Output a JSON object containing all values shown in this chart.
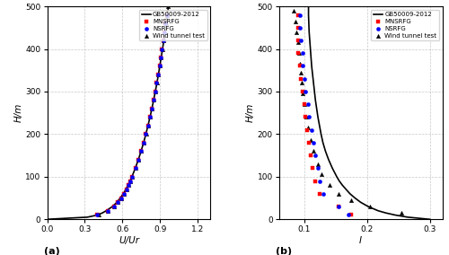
{
  "panel_a": {
    "xlabel": "U/Ur",
    "ylabel": "H/m",
    "xlim": [
      0.0,
      1.3
    ],
    "ylim": [
      0,
      500
    ],
    "xticks": [
      0.0,
      0.3,
      0.6,
      0.9,
      1.2
    ],
    "yticks": [
      0,
      100,
      200,
      300,
      400,
      500
    ],
    "gb_H": [
      0,
      5,
      10,
      15,
      20,
      30,
      40,
      50,
      60,
      70,
      80,
      90,
      100,
      120,
      140,
      160,
      180,
      200,
      220,
      240,
      260,
      280,
      300,
      320,
      340,
      360,
      380,
      400,
      420,
      440,
      460,
      480,
      500
    ],
    "gb_U": [
      0.0,
      0.32,
      0.4,
      0.44,
      0.47,
      0.52,
      0.555,
      0.582,
      0.606,
      0.626,
      0.644,
      0.66,
      0.675,
      0.702,
      0.726,
      0.748,
      0.768,
      0.786,
      0.803,
      0.819,
      0.834,
      0.848,
      0.861,
      0.874,
      0.886,
      0.897,
      0.908,
      0.919,
      0.929,
      0.938,
      0.948,
      0.957,
      0.966
    ],
    "mn_H": [
      10,
      20,
      30,
      40,
      50,
      60,
      70,
      80,
      90,
      100,
      120,
      140,
      160,
      180,
      200,
      220,
      240,
      260,
      280,
      300,
      320,
      340,
      360,
      380,
      400,
      420,
      440,
      460,
      480
    ],
    "mn_U": [
      0.4,
      0.48,
      0.53,
      0.562,
      0.588,
      0.611,
      0.63,
      0.648,
      0.664,
      0.679,
      0.706,
      0.729,
      0.75,
      0.769,
      0.786,
      0.803,
      0.818,
      0.833,
      0.847,
      0.86,
      0.872,
      0.883,
      0.894,
      0.905,
      0.915,
      0.924,
      0.934,
      0.943,
      0.951
    ],
    "ns_H": [
      10,
      20,
      30,
      40,
      50,
      60,
      70,
      80,
      90,
      100,
      120,
      140,
      160,
      180,
      200,
      220,
      240,
      260,
      280,
      300,
      320,
      340,
      360,
      380,
      400,
      420,
      440,
      460,
      480
    ],
    "ns_U": [
      0.4,
      0.48,
      0.53,
      0.562,
      0.588,
      0.611,
      0.63,
      0.648,
      0.664,
      0.679,
      0.706,
      0.729,
      0.75,
      0.769,
      0.786,
      0.803,
      0.818,
      0.833,
      0.847,
      0.86,
      0.872,
      0.883,
      0.894,
      0.905,
      0.915,
      0.924,
      0.934,
      0.943,
      0.951
    ],
    "wt_H": [
      10,
      20,
      30,
      40,
      50,
      60,
      70,
      80,
      90,
      100,
      120,
      140,
      160,
      180,
      200,
      220,
      240,
      260,
      280,
      300,
      320,
      340,
      360,
      380,
      400,
      420,
      440,
      460,
      480,
      500
    ],
    "wt_U": [
      0.41,
      0.48,
      0.53,
      0.558,
      0.588,
      0.612,
      0.63,
      0.648,
      0.663,
      0.678,
      0.704,
      0.728,
      0.749,
      0.769,
      0.787,
      0.803,
      0.819,
      0.833,
      0.847,
      0.86,
      0.873,
      0.884,
      0.895,
      0.906,
      0.916,
      0.925,
      0.934,
      0.944,
      0.953,
      0.962
    ],
    "label": "(a)"
  },
  "panel_b": {
    "xlabel": "I",
    "ylabel": "H/m",
    "xlim": [
      0.06,
      0.32
    ],
    "ylim": [
      0,
      500
    ],
    "xticks": [
      0.1,
      0.2,
      0.3
    ],
    "yticks": [
      0,
      100,
      200,
      300,
      400,
      500
    ],
    "gb_H": [
      0,
      5,
      10,
      15,
      20,
      30,
      40,
      50,
      60,
      70,
      80,
      90,
      100,
      120,
      140,
      160,
      180,
      200,
      240,
      280,
      320,
      360,
      400,
      440,
      480,
      500
    ],
    "gb_I": [
      0.3,
      0.265,
      0.245,
      0.23,
      0.218,
      0.202,
      0.19,
      0.181,
      0.173,
      0.167,
      0.161,
      0.156,
      0.152,
      0.145,
      0.139,
      0.134,
      0.13,
      0.127,
      0.122,
      0.118,
      0.115,
      0.112,
      0.11,
      0.108,
      0.107,
      0.107
    ],
    "mn_H": [
      480,
      450,
      420,
      390,
      360,
      330,
      300,
      270,
      240,
      210,
      180,
      150,
      120,
      90,
      60,
      30,
      10
    ],
    "mn_I": [
      0.09,
      0.09,
      0.09,
      0.09,
      0.093,
      0.095,
      0.098,
      0.1,
      0.102,
      0.105,
      0.108,
      0.11,
      0.113,
      0.117,
      0.125,
      0.155,
      0.175
    ],
    "ns_H": [
      480,
      450,
      420,
      390,
      360,
      330,
      300,
      270,
      240,
      210,
      180,
      150,
      120,
      90,
      60,
      30,
      10
    ],
    "ns_I": [
      0.093,
      0.093,
      0.095,
      0.097,
      0.098,
      0.1,
      0.102,
      0.106,
      0.108,
      0.112,
      0.115,
      0.118,
      0.122,
      0.125,
      0.13,
      0.155,
      0.17
    ],
    "wt_H": [
      490,
      465,
      440,
      415,
      390,
      365,
      345,
      320,
      295,
      270,
      240,
      215,
      185,
      160,
      130,
      105,
      80,
      60,
      45,
      30,
      15
    ],
    "wt_I": [
      0.083,
      0.086,
      0.088,
      0.09,
      0.092,
      0.093,
      0.095,
      0.096,
      0.098,
      0.1,
      0.103,
      0.106,
      0.11,
      0.115,
      0.122,
      0.128,
      0.14,
      0.155,
      0.175,
      0.205,
      0.255
    ],
    "label": "(b)"
  },
  "legend": {
    "gb": "GB50009-2012",
    "mn": "MNSRFG",
    "ns": "NSRFG",
    "wt": "Wind tunnel test"
  }
}
